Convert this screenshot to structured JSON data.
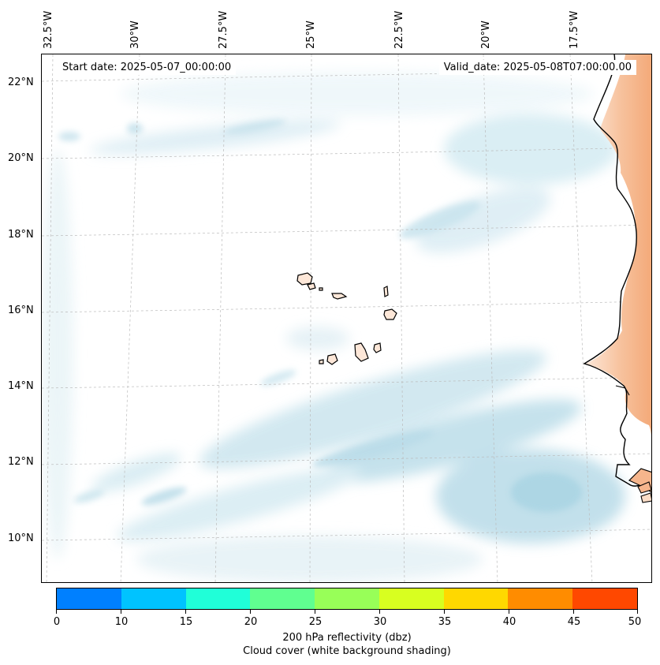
{
  "map": {
    "header": {
      "start_date": "Start date: 2025-05-07_00:00:00",
      "valid_date": "Valid_date: 2025-05-08T07:00:00.00"
    },
    "lon_labels": [
      "32.5°W",
      "30°W",
      "27.5°W",
      "25°W",
      "22.5°W",
      "20°W",
      "17.5°W"
    ],
    "lat_labels": [
      "22°N",
      "20°N",
      "18°N",
      "16°N",
      "14°N",
      "12°N",
      "10°N"
    ],
    "colors": {
      "cloud_light": "#e8f4f8",
      "cloud_mid": "#cfe8f0",
      "cloud_dense": "#b7dce9",
      "land_shade": "#f6b58c",
      "land_shade_light": "#fbdcc6",
      "coastline": "#000000",
      "gridline": "#bbbbbb"
    }
  },
  "colorbar": {
    "title": "200 hPa reflectivity (dbz)",
    "subtitle": "Cloud cover (white background shading)",
    "ticks": [
      "0",
      "10",
      "15",
      "20",
      "25",
      "30",
      "35",
      "40",
      "45",
      "50"
    ],
    "colors": [
      "#0080ff",
      "#00c3ff",
      "#20ffd8",
      "#60ff90",
      "#98ff58",
      "#d8ff20",
      "#ffd800",
      "#ff8c00",
      "#ff4800"
    ]
  }
}
